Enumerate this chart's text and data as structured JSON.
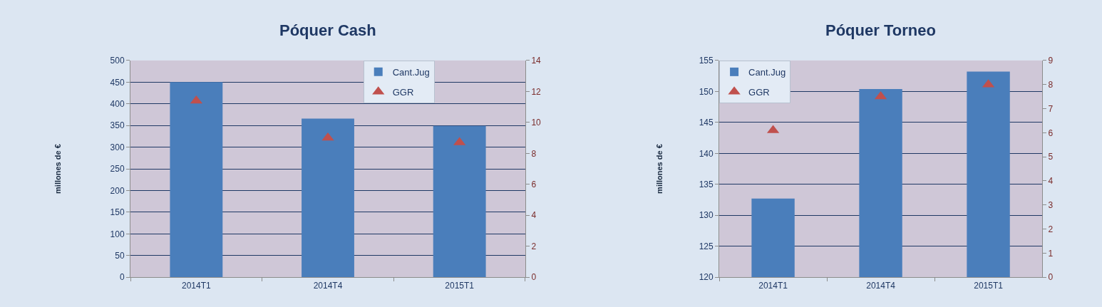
{
  "chart_data": [
    {
      "type": "bar",
      "title": "Póquer Cash",
      "ylabel": "millones de €",
      "categories": [
        "2014T1",
        "2014T4",
        "2015T1"
      ],
      "series": [
        {
          "name": "Cant.Jug",
          "color": "#4a7ebb",
          "values": [
            450,
            366,
            349
          ]
        },
        {
          "name": "GGR",
          "type": "scatter",
          "axis": "y2",
          "color": "#c0504d",
          "values": [
            11.4,
            9.0,
            8.7
          ]
        }
      ],
      "ylim": [
        0,
        500
      ],
      "yticks": [
        0,
        50,
        100,
        150,
        200,
        250,
        300,
        350,
        400,
        450,
        500
      ],
      "y2lim": [
        0,
        14
      ],
      "y2ticks": [
        0,
        2,
        4,
        6,
        8,
        10,
        12,
        14
      ],
      "grid": "y",
      "legend": "top",
      "marker": "triangle"
    },
    {
      "type": "bar",
      "title": "Póquer Torneo",
      "ylabel": "millones de €",
      "categories": [
        "2014T1",
        "2014T4",
        "2015T1"
      ],
      "series": [
        {
          "name": "Cant.Jug",
          "color": "#4a7ebb",
          "values": [
            132.7,
            150.4,
            153.2
          ]
        },
        {
          "name": "GGR",
          "type": "scatter",
          "axis": "y2",
          "color": "#c0504d",
          "values": [
            6.1,
            7.5,
            8.0
          ]
        }
      ],
      "ylim": [
        120,
        155
      ],
      "yticks": [
        120,
        125,
        130,
        135,
        140,
        145,
        150,
        155
      ],
      "y2lim": [
        0,
        9
      ],
      "y2ticks": [
        0,
        1,
        2,
        3,
        4,
        5,
        6,
        7,
        8,
        9
      ],
      "grid": "y",
      "legend": "top left",
      "marker": "triangle"
    }
  ]
}
